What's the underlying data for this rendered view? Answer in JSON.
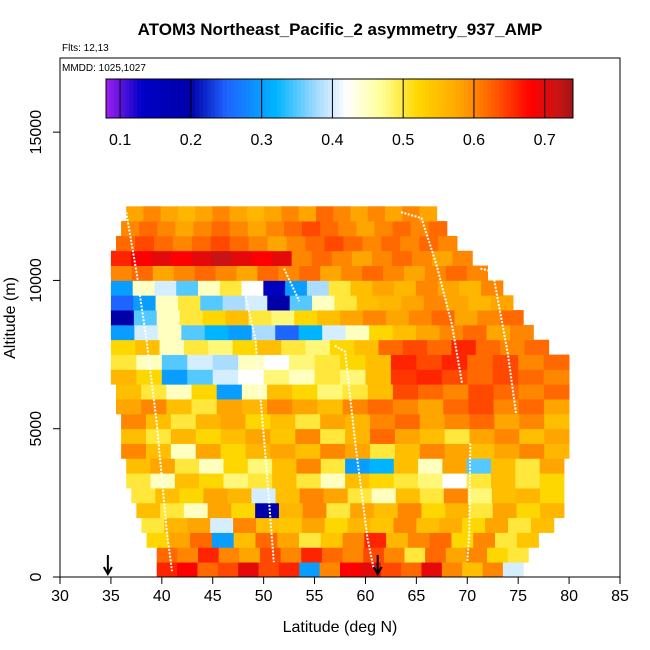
{
  "chart_data": {
    "type": "heatmap",
    "title": "ATOM3 Northeast_Pacific_2 asymmetry_937_AMP",
    "annotations": {
      "flights": "Flts: 12,13",
      "dates": "MMDD: 1025,1027"
    },
    "xlabel": "Latitude (deg N)",
    "ylabel": "Altitude (m)",
    "xlim": [
      30,
      85
    ],
    "ylim": [
      0,
      17500
    ],
    "xticks": [
      "30",
      "35",
      "40",
      "45",
      "50",
      "55",
      "60",
      "65",
      "70",
      "75",
      "80",
      "85"
    ],
    "yticks": [
      "0",
      "5000",
      "10000",
      "15000"
    ],
    "colorbar": {
      "range": [
        0.08,
        0.74
      ],
      "ticks": [
        "0.1",
        "0.2",
        "0.3",
        "0.4",
        "0.5",
        "0.6",
        "0.7"
      ],
      "placement": "top"
    },
    "markers": [
      {
        "name": "arrow-1",
        "lat": 34.7,
        "alt": 0
      },
      {
        "name": "arrow-2",
        "lat": 61.2,
        "alt": 0
      }
    ],
    "rows": [
      {
        "alt": 250,
        "lat_start": 39.5,
        "lat_end": 75.5,
        "values": [
          0.66,
          0.68,
          0.62,
          0.64,
          0.7,
          0.64,
          0.66,
          0.3,
          0.6,
          0.68,
          0.7,
          0.64,
          0.62,
          0.7,
          0.6,
          0.55,
          0.6,
          0.4
        ]
      },
      {
        "alt": 750,
        "lat_start": 39.5,
        "lat_end": 76,
        "values": [
          0.62,
          0.6,
          0.66,
          0.6,
          0.58,
          0.64,
          0.6,
          0.66,
          0.62,
          0.6,
          0.64,
          0.6,
          0.5,
          0.62,
          0.58,
          0.6,
          0.52,
          0.5
        ]
      },
      {
        "alt": 1250,
        "lat_start": 38.5,
        "lat_end": 77,
        "values": [
          0.52,
          0.58,
          0.62,
          0.3,
          0.55,
          0.62,
          0.58,
          0.5,
          0.54,
          0.6,
          0.66,
          0.56,
          0.6,
          0.62,
          0.52,
          0.6,
          0.5,
          0.54
        ]
      },
      {
        "alt": 1750,
        "lat_start": 38,
        "lat_end": 78.5,
        "values": [
          0.5,
          0.56,
          0.58,
          0.4,
          0.6,
          0.55,
          0.54,
          0.58,
          0.52,
          0.56,
          0.54,
          0.6,
          0.55,
          0.57,
          0.52,
          0.58,
          0.5,
          0.55
        ]
      },
      {
        "alt": 2250,
        "lat_start": 37.5,
        "lat_end": 79.5,
        "values": [
          0.55,
          0.5,
          0.45,
          0.58,
          0.52,
          0.2,
          0.56,
          0.6,
          0.5,
          0.58,
          0.55,
          0.6,
          0.52,
          0.56,
          0.5,
          0.58,
          0.52,
          0.56
        ]
      },
      {
        "alt": 2750,
        "lat_start": 37,
        "lat_end": 79.5,
        "values": [
          0.5,
          0.55,
          0.52,
          0.58,
          0.56,
          0.4,
          0.55,
          0.6,
          0.58,
          0.5,
          0.45,
          0.55,
          0.5,
          0.6,
          0.48,
          0.55,
          0.56,
          0.52
        ]
      },
      {
        "alt": 3250,
        "lat_start": 36.5,
        "lat_end": 79.5,
        "values": [
          0.5,
          0.45,
          0.55,
          0.52,
          0.48,
          0.5,
          0.55,
          0.5,
          0.45,
          0.55,
          0.52,
          0.5,
          0.48,
          0.42,
          0.5,
          0.55,
          0.5,
          0.52
        ]
      },
      {
        "alt": 3750,
        "lat_start": 36.5,
        "lat_end": 79.5,
        "values": [
          0.55,
          0.58,
          0.5,
          0.45,
          0.52,
          0.48,
          0.55,
          0.6,
          0.5,
          0.3,
          0.32,
          0.55,
          0.45,
          0.58,
          0.35,
          0.55,
          0.5,
          0.58
        ]
      },
      {
        "alt": 4250,
        "lat_start": 36,
        "lat_end": 80,
        "values": [
          0.6,
          0.55,
          0.45,
          0.58,
          0.52,
          0.56,
          0.58,
          0.55,
          0.6,
          0.58,
          0.5,
          0.55,
          0.6,
          0.58,
          0.55,
          0.58,
          0.6,
          0.56
        ]
      },
      {
        "alt": 4750,
        "lat_start": 36,
        "lat_end": 80,
        "values": [
          0.55,
          0.5,
          0.56,
          0.52,
          0.55,
          0.58,
          0.54,
          0.6,
          0.5,
          0.56,
          0.62,
          0.58,
          0.55,
          0.5,
          0.58,
          0.6,
          0.55,
          0.58
        ]
      },
      {
        "alt": 5250,
        "lat_start": 36,
        "lat_end": 80,
        "values": [
          0.6,
          0.55,
          0.5,
          0.56,
          0.58,
          0.52,
          0.55,
          0.5,
          0.58,
          0.56,
          0.6,
          0.62,
          0.58,
          0.6,
          0.62,
          0.58,
          0.6,
          0.55
        ]
      },
      {
        "alt": 5750,
        "lat_start": 35.5,
        "lat_end": 80,
        "values": [
          0.58,
          0.6,
          0.55,
          0.5,
          0.58,
          0.56,
          0.6,
          0.58,
          0.55,
          0.6,
          0.62,
          0.6,
          0.58,
          0.62,
          0.64,
          0.6,
          0.62,
          0.58
        ]
      },
      {
        "alt": 6250,
        "lat_start": 35.5,
        "lat_end": 80,
        "values": [
          0.55,
          0.5,
          0.45,
          0.52,
          0.3,
          0.45,
          0.55,
          0.52,
          0.48,
          0.5,
          0.55,
          0.64,
          0.62,
          0.6,
          0.64,
          0.62,
          0.6,
          0.62
        ]
      },
      {
        "alt": 6750,
        "lat_start": 35,
        "lat_end": 80,
        "values": [
          0.56,
          0.52,
          0.3,
          0.35,
          0.4,
          0.42,
          0.48,
          0.45,
          0.5,
          0.48,
          0.55,
          0.65,
          0.66,
          0.64,
          0.62,
          0.64,
          0.62,
          0.6
        ]
      },
      {
        "alt": 7250,
        "lat_start": 35,
        "lat_end": 80,
        "values": [
          0.5,
          0.45,
          0.35,
          0.4,
          0.38,
          0.45,
          0.42,
          0.48,
          0.5,
          0.52,
          0.55,
          0.66,
          0.64,
          0.66,
          0.62,
          0.64,
          0.6,
          0.62
        ]
      },
      {
        "alt": 7750,
        "lat_start": 35,
        "lat_end": 78,
        "values": [
          0.52,
          0.55,
          0.45,
          0.5,
          0.48,
          0.52,
          0.55,
          0.5,
          0.48,
          0.52,
          0.55,
          0.62,
          0.64,
          0.62,
          0.66,
          0.62,
          0.6,
          0.62
        ]
      },
      {
        "alt": 8250,
        "lat_start": 35,
        "lat_end": 76.5,
        "values": [
          0.3,
          0.4,
          0.45,
          0.35,
          0.32,
          0.3,
          0.38,
          0.25,
          0.32,
          0.4,
          0.45,
          0.52,
          0.55,
          0.58,
          0.6,
          0.62,
          0.58,
          0.6
        ]
      },
      {
        "alt": 8750,
        "lat_start": 35,
        "lat_end": 75.5,
        "values": [
          0.2,
          0.35,
          0.45,
          0.5,
          0.52,
          0.55,
          0.5,
          0.48,
          0.52,
          0.55,
          0.58,
          0.6,
          0.58,
          0.6,
          0.62,
          0.58,
          0.6,
          0.62
        ]
      },
      {
        "alt": 9250,
        "lat_start": 35,
        "lat_end": 74.5,
        "values": [
          0.25,
          0.3,
          0.45,
          0.5,
          0.35,
          0.38,
          0.4,
          0.2,
          0.35,
          0.45,
          0.5,
          0.55,
          0.56,
          0.58,
          0.6,
          0.58,
          0.56,
          0.58
        ]
      },
      {
        "alt": 9750,
        "lat_start": 35,
        "lat_end": 73.5,
        "values": [
          0.3,
          0.45,
          0.4,
          0.35,
          0.45,
          0.5,
          0.42,
          0.15,
          0.3,
          0.38,
          0.5,
          0.55,
          0.58,
          0.56,
          0.6,
          0.58,
          0.56,
          0.6
        ]
      },
      {
        "alt": 10250,
        "lat_start": 35,
        "lat_end": 72,
        "values": [
          0.6,
          0.62,
          0.58,
          0.6,
          0.62,
          0.6,
          0.58,
          0.62,
          0.6,
          0.62,
          0.58,
          0.6,
          0.62,
          0.6,
          0.58,
          0.6,
          0.62,
          0.6
        ]
      },
      {
        "alt": 10750,
        "lat_start": 35,
        "lat_end": 70.5,
        "values": [
          0.66,
          0.68,
          0.7,
          0.68,
          0.7,
          0.72,
          0.7,
          0.68,
          0.7,
          0.6,
          0.62,
          0.6,
          0.58,
          0.6,
          0.62,
          0.6,
          0.58,
          0.6
        ]
      },
      {
        "alt": 11250,
        "lat_start": 35.5,
        "lat_end": 69,
        "values": [
          0.62,
          0.64,
          0.62,
          0.6,
          0.62,
          0.64,
          0.62,
          0.6,
          0.58,
          0.6,
          0.62,
          0.64,
          0.62,
          0.6,
          0.62,
          0.6,
          0.62,
          0.6
        ]
      },
      {
        "alt": 11750,
        "lat_start": 36,
        "lat_end": 68,
        "values": [
          0.6,
          0.62,
          0.6,
          0.58,
          0.6,
          0.62,
          0.6,
          0.58,
          0.6,
          0.62,
          0.64,
          0.62,
          0.6,
          0.58,
          0.6,
          0.62,
          0.6,
          0.62
        ]
      },
      {
        "alt": 12250,
        "lat_start": 36.5,
        "lat_end": 67,
        "values": [
          0.58,
          0.6,
          0.58,
          0.56,
          0.58,
          0.6,
          0.58,
          0.56,
          0.58,
          0.6,
          0.58,
          0.62,
          0.6,
          0.58,
          0.6,
          0.58,
          0.6,
          0.58
        ]
      }
    ],
    "tracks": [
      {
        "name": "profile-1",
        "points": [
          [
            36.5,
            12300
          ],
          [
            37.5,
            10300
          ],
          [
            38.5,
            8000
          ],
          [
            39.5,
            5200
          ],
          [
            40.5,
            1500
          ],
          [
            41,
            200
          ]
        ]
      },
      {
        "name": "profile-2",
        "points": [
          [
            48,
            9800
          ],
          [
            49.2,
            8000
          ],
          [
            50.2,
            4000
          ],
          [
            51,
            500
          ]
        ]
      },
      {
        "name": "profile-3",
        "points": [
          [
            52,
            10400
          ],
          [
            53.5,
            9300
          ]
        ]
      },
      {
        "name": "profile-4",
        "points": [
          [
            57,
            7800
          ],
          [
            58,
            7600
          ],
          [
            59,
            4500
          ],
          [
            60.2,
            1300
          ],
          [
            60.8,
            300
          ]
        ]
      },
      {
        "name": "profile-5",
        "points": [
          [
            63.5,
            12300
          ],
          [
            65.5,
            12100
          ],
          [
            67,
            10500
          ],
          [
            68.5,
            8500
          ],
          [
            69.5,
            6500
          ]
        ]
      },
      {
        "name": "profile-6",
        "points": [
          [
            71.3,
            10400
          ],
          [
            72.5,
            10300
          ],
          [
            74,
            7500
          ],
          [
            74.8,
            5500
          ]
        ]
      },
      {
        "name": "profile-7",
        "points": [
          [
            70.3,
            4500
          ],
          [
            70.2,
            1500
          ],
          [
            70,
            500
          ]
        ]
      }
    ]
  }
}
